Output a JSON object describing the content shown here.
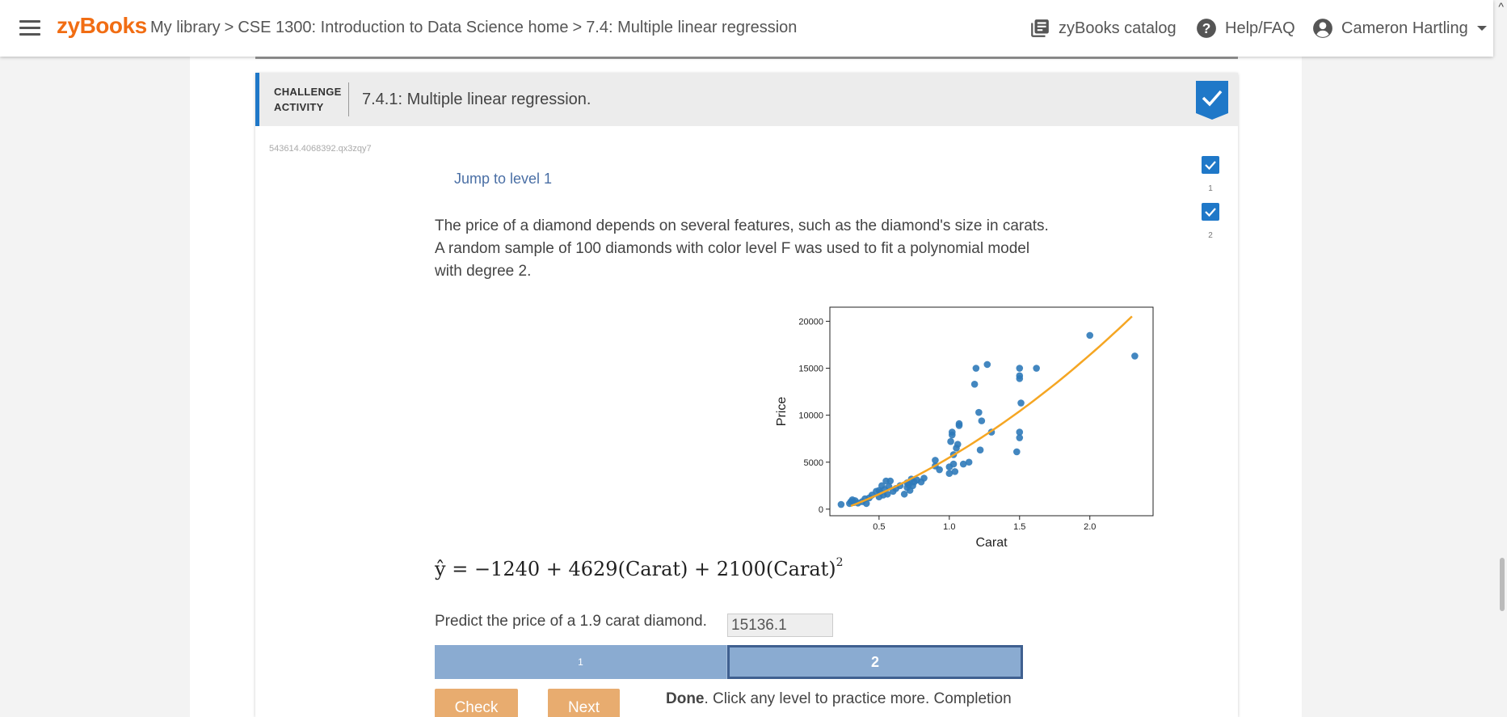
{
  "topbar": {
    "logo": "zyBooks",
    "breadcrumb": {
      "library": "My library",
      "sep": ">",
      "course": "CSE 1300: Introduction to Data Science home",
      "section": "7.4: Multiple linear regression"
    },
    "catalog_label": "zyBooks catalog",
    "help_label": "Help/FAQ",
    "user_name": "Cameron Hartling"
  },
  "activity": {
    "header_label_line1": "CHALLENGE",
    "header_label_line2": "ACTIVITY",
    "title": "7.4.1: Multiple linear regression.",
    "id": "543614.4068392.qx3zqy7",
    "jump_link": "Jump to level 1",
    "level_indicators": [
      "1",
      "2"
    ],
    "prompt": "The price of a diamond depends on several features, such as the diamond's size in carats. A random sample of 100 diamonds with color level F was used to fit a polynomial model with degree 2.",
    "equation": {
      "lhs": "ŷ",
      "rhs": "= −1240 + 4629(Carat) + 2100(Carat)",
      "exponent": "2"
    },
    "question": "Predict the price of a 1.9 carat diamond.",
    "answer_value": "15136.1",
    "levels": [
      "1",
      "2"
    ],
    "current_level": 2,
    "buttons": {
      "check": "Check",
      "next": "Next"
    },
    "done_bold": "Done",
    "done_rest": ". Click any level to practice more. Completion"
  },
  "chart_data": {
    "type": "scatter",
    "xlabel": "Carat",
    "ylabel": "Price",
    "xlim": [
      0.15,
      2.45
    ],
    "ylim": [
      -700,
      21500
    ],
    "x_ticks": [
      0.5,
      1.0,
      1.5,
      2.0
    ],
    "x_tick_labels": [
      "0.5",
      "1.0",
      "1.5",
      "2.0"
    ],
    "y_ticks": [
      0,
      5000,
      10000,
      15000,
      20000
    ],
    "y_tick_labels": [
      "0",
      "5000",
      "10000",
      "15000",
      "20000"
    ],
    "point_color": "#2f7ab9",
    "line_color": "#f5a623",
    "fit": {
      "intercept": -1240,
      "b1": 4629,
      "b2": 2100,
      "x_range": [
        0.3,
        2.3
      ]
    },
    "points": [
      [
        0.23,
        500
      ],
      [
        0.29,
        600
      ],
      [
        0.3,
        800
      ],
      [
        0.31,
        1000
      ],
      [
        0.32,
        700
      ],
      [
        0.33,
        900
      ],
      [
        0.35,
        650
      ],
      [
        0.38,
        800
      ],
      [
        0.4,
        1100
      ],
      [
        0.41,
        600
      ],
      [
        0.43,
        1200
      ],
      [
        0.45,
        1500
      ],
      [
        0.48,
        1900
      ],
      [
        0.5,
        2000
      ],
      [
        0.5,
        1300
      ],
      [
        0.51,
        1800
      ],
      [
        0.52,
        2500
      ],
      [
        0.53,
        1500
      ],
      [
        0.54,
        2100
      ],
      [
        0.55,
        3000
      ],
      [
        0.56,
        1600
      ],
      [
        0.57,
        2400
      ],
      [
        0.58,
        3000
      ],
      [
        0.6,
        1900
      ],
      [
        0.62,
        2200
      ],
      [
        0.65,
        2500
      ],
      [
        0.68,
        1600
      ],
      [
        0.7,
        2800
      ],
      [
        0.7,
        2300
      ],
      [
        0.71,
        2600
      ],
      [
        0.72,
        2000
      ],
      [
        0.73,
        3200
      ],
      [
        0.74,
        2500
      ],
      [
        0.75,
        2900
      ],
      [
        0.77,
        3100
      ],
      [
        0.8,
        2900
      ],
      [
        0.82,
        3300
      ],
      [
        0.9,
        4600
      ],
      [
        0.9,
        5200
      ],
      [
        0.93,
        4200
      ],
      [
        1.0,
        4500
      ],
      [
        1.0,
        3800
      ],
      [
        1.01,
        7200
      ],
      [
        1.02,
        7900
      ],
      [
        1.02,
        8200
      ],
      [
        1.03,
        5800
      ],
      [
        1.03,
        4800
      ],
      [
        1.04,
        4000
      ],
      [
        1.05,
        6500
      ],
      [
        1.06,
        6900
      ],
      [
        1.07,
        8900
      ],
      [
        1.07,
        9100
      ],
      [
        1.1,
        4800
      ],
      [
        1.14,
        5000
      ],
      [
        1.18,
        13300
      ],
      [
        1.19,
        15000
      ],
      [
        1.21,
        10300
      ],
      [
        1.22,
        6300
      ],
      [
        1.23,
        9400
      ],
      [
        1.27,
        15400
      ],
      [
        1.3,
        8200
      ],
      [
        1.48,
        6100
      ],
      [
        1.5,
        13900
      ],
      [
        1.5,
        14200
      ],
      [
        1.5,
        15000
      ],
      [
        1.5,
        8200
      ],
      [
        1.5,
        7600
      ],
      [
        1.51,
        11300
      ],
      [
        1.62,
        15000
      ],
      [
        2.0,
        18500
      ],
      [
        2.32,
        16300
      ]
    ]
  }
}
